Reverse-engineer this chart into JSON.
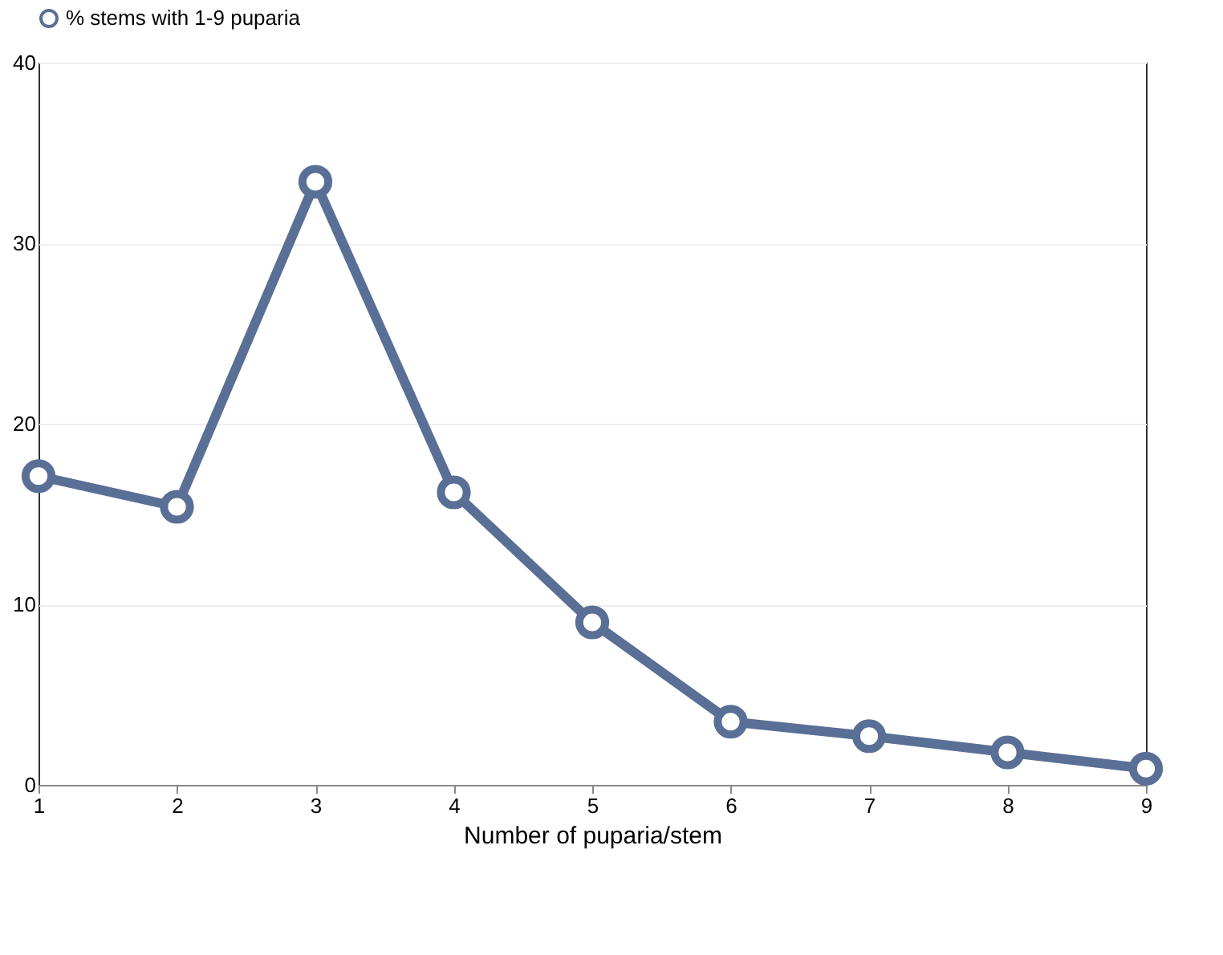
{
  "chart_data": {
    "type": "line",
    "xlabel": "Number of puparia/stem",
    "x": [
      1,
      2,
      3,
      4,
      5,
      6,
      7,
      8,
      9
    ],
    "series": [
      {
        "name": "% stems with 1-9 puparia",
        "color": "#5a6f96",
        "values": [
          17.1,
          15.4,
          33.4,
          16.2,
          9.0,
          3.5,
          2.7,
          1.8,
          0.9
        ]
      }
    ],
    "xlim": [
      1,
      9
    ],
    "xticks": [
      1,
      2,
      3,
      4,
      5,
      6,
      7,
      8,
      9
    ],
    "ylim": [
      0,
      40
    ],
    "yticks": [
      0,
      10,
      20,
      30,
      40
    ],
    "grid": "y",
    "legend": "top",
    "marker": "circle",
    "line_style": "solid"
  }
}
